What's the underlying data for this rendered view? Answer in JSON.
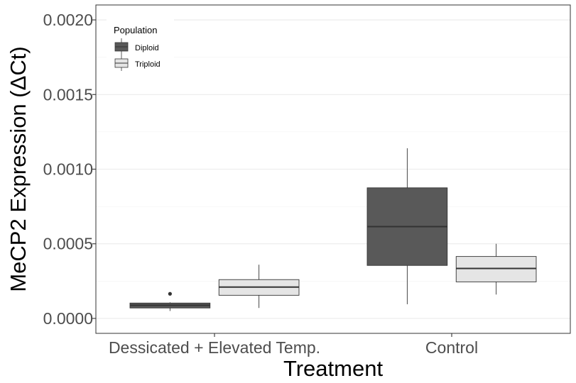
{
  "chart_data": {
    "type": "box",
    "xlabel": "Treatment",
    "ylabel": "MeCP2 Expression (ΔCt)",
    "ylim": [
      -0.0001,
      0.0021
    ],
    "y_ticks": [
      "0.0000",
      "0.0005",
      "0.0010",
      "0.0015",
      "0.0020"
    ],
    "y_tick_values": [
      0,
      0.0005,
      0.001,
      0.0015,
      0.002
    ],
    "categories": [
      "Dessicated + Elevated Temp.",
      "Control"
    ],
    "grid": "horizontal major and minor",
    "legend": {
      "title": "Population",
      "placement": "top-left",
      "entries": [
        {
          "label": "Diploid",
          "color": "#595959"
        },
        {
          "label": "Triploid",
          "color": "#e5e5e5"
        }
      ]
    },
    "series": [
      {
        "name": "Diploid",
        "color": "#595959",
        "boxes": [
          {
            "category": "Dessicated + Elevated Temp.",
            "min": 5e-05,
            "q1": 7e-05,
            "median": 8.8e-05,
            "q3": 0.000103,
            "max": 0.000108,
            "outliers": [
              0.000165
            ]
          },
          {
            "category": "Control",
            "min": 9.5e-05,
            "q1": 0.000355,
            "median": 0.000615,
            "q3": 0.000875,
            "max": 0.00114,
            "outliers": []
          }
        ]
      },
      {
        "name": "Triploid",
        "color": "#e5e5e5",
        "boxes": [
          {
            "category": "Dessicated + Elevated Temp.",
            "min": 7e-05,
            "q1": 0.000155,
            "median": 0.00021,
            "q3": 0.00026,
            "max": 0.00036,
            "outliers": []
          },
          {
            "category": "Control",
            "min": 0.00016,
            "q1": 0.000245,
            "median": 0.000335,
            "q3": 0.000415,
            "max": 0.0005,
            "outliers": []
          }
        ]
      }
    ]
  }
}
